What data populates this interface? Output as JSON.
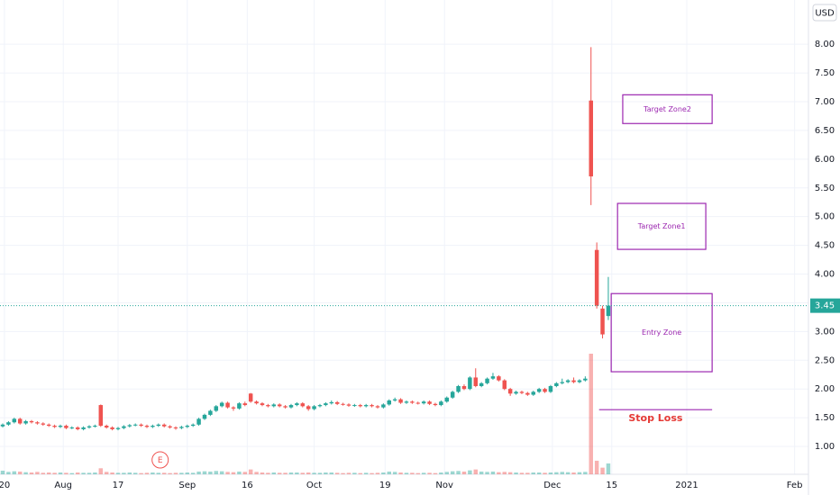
{
  "chart_data": {
    "type": "candlestick",
    "currency": "USD",
    "up_color": "#26a69a",
    "down_color": "#ef5350",
    "annotation_color": "#9c27b0",
    "stop_text_color": "#e53935",
    "grid": true,
    "ylim": [
      0.515,
      8.77
    ],
    "xlim": [
      -0.47,
      139.7
    ],
    "yticks": [
      {
        "value": 1,
        "label": "1.00"
      },
      {
        "value": 1.5,
        "label": "1.50"
      },
      {
        "value": 2,
        "label": "2.00"
      },
      {
        "value": 2.5,
        "label": "2.50"
      },
      {
        "value": 3,
        "label": "3.00"
      },
      {
        "value": 3.5,
        "label": "3.50"
      },
      {
        "value": 4,
        "label": "4.00"
      },
      {
        "value": 4.5,
        "label": "4.50"
      },
      {
        "value": 5,
        "label": "5.00"
      },
      {
        "value": 5.5,
        "label": "5.50"
      },
      {
        "value": 6,
        "label": "6.00"
      },
      {
        "value": 6.5,
        "label": "6.50"
      },
      {
        "value": 7,
        "label": "7.00"
      },
      {
        "value": 7.5,
        "label": "7.50"
      },
      {
        "value": 8,
        "label": "8.00"
      }
    ],
    "xticks": [
      {
        "value": 0.3,
        "label": "20"
      },
      {
        "value": 10.5,
        "label": "Aug"
      },
      {
        "value": 20,
        "label": "17"
      },
      {
        "value": 32,
        "label": "Sep"
      },
      {
        "value": 42.4,
        "label": "16"
      },
      {
        "value": 54,
        "label": "Oct"
      },
      {
        "value": 66.3,
        "label": "19"
      },
      {
        "value": 76.6,
        "label": "Nov"
      },
      {
        "value": 95.3,
        "label": "Dec"
      },
      {
        "value": 105.6,
        "label": "15"
      },
      {
        "value": 118.6,
        "label": "2021"
      },
      {
        "value": 137.3,
        "label": "Feb"
      }
    ],
    "candles": [
      [
        1.35,
        1.4,
        1.33,
        1.38
      ],
      [
        1.38,
        1.44,
        1.36,
        1.42
      ],
      [
        1.42,
        1.5,
        1.4,
        1.48
      ],
      [
        1.48,
        1.5,
        1.38,
        1.4
      ],
      [
        1.4,
        1.46,
        1.38,
        1.44
      ],
      [
        1.44,
        1.46,
        1.4,
        1.42
      ],
      [
        1.42,
        1.44,
        1.38,
        1.4
      ],
      [
        1.4,
        1.42,
        1.36,
        1.38
      ],
      [
        1.38,
        1.4,
        1.34,
        1.36
      ],
      [
        1.36,
        1.38,
        1.32,
        1.34
      ],
      [
        1.34,
        1.38,
        1.32,
        1.36
      ],
      [
        1.36,
        1.38,
        1.3,
        1.32
      ],
      [
        1.32,
        1.35,
        1.3,
        1.33
      ],
      [
        1.33,
        1.35,
        1.28,
        1.3
      ],
      [
        1.3,
        1.35,
        1.28,
        1.33
      ],
      [
        1.33,
        1.37,
        1.31,
        1.35
      ],
      [
        1.35,
        1.38,
        1.33,
        1.36
      ],
      [
        1.72,
        1.73,
        1.34,
        1.36
      ],
      [
        1.36,
        1.38,
        1.31,
        1.33
      ],
      [
        1.33,
        1.35,
        1.28,
        1.3
      ],
      [
        1.3,
        1.34,
        1.28,
        1.32
      ],
      [
        1.32,
        1.37,
        1.3,
        1.35
      ],
      [
        1.35,
        1.39,
        1.33,
        1.37
      ],
      [
        1.37,
        1.4,
        1.35,
        1.38
      ],
      [
        1.38,
        1.4,
        1.34,
        1.36
      ],
      [
        1.36,
        1.38,
        1.32,
        1.34
      ],
      [
        1.34,
        1.38,
        1.32,
        1.36
      ],
      [
        1.36,
        1.4,
        1.34,
        1.38
      ],
      [
        1.38,
        1.4,
        1.33,
        1.35
      ],
      [
        1.35,
        1.37,
        1.31,
        1.33
      ],
      [
        1.33,
        1.35,
        1.29,
        1.32
      ],
      [
        1.32,
        1.36,
        1.3,
        1.34
      ],
      [
        1.34,
        1.38,
        1.32,
        1.36
      ],
      [
        1.36,
        1.4,
        1.34,
        1.38
      ],
      [
        1.38,
        1.5,
        1.36,
        1.48
      ],
      [
        1.48,
        1.57,
        1.46,
        1.55
      ],
      [
        1.55,
        1.64,
        1.53,
        1.62
      ],
      [
        1.62,
        1.72,
        1.6,
        1.7
      ],
      [
        1.7,
        1.78,
        1.68,
        1.76
      ],
      [
        1.76,
        1.78,
        1.66,
        1.68
      ],
      [
        1.68,
        1.7,
        1.62,
        1.66
      ],
      [
        1.66,
        1.77,
        1.64,
        1.75
      ],
      [
        1.75,
        1.78,
        1.7,
        1.72
      ],
      [
        1.92,
        1.93,
        1.76,
        1.78
      ],
      [
        1.78,
        1.8,
        1.73,
        1.75
      ],
      [
        1.75,
        1.77,
        1.7,
        1.72
      ],
      [
        1.72,
        1.74,
        1.68,
        1.7
      ],
      [
        1.7,
        1.75,
        1.68,
        1.73
      ],
      [
        1.73,
        1.75,
        1.68,
        1.7
      ],
      [
        1.7,
        1.72,
        1.66,
        1.68
      ],
      [
        1.68,
        1.74,
        1.66,
        1.72
      ],
      [
        1.72,
        1.77,
        1.7,
        1.75
      ],
      [
        1.75,
        1.77,
        1.68,
        1.7
      ],
      [
        1.7,
        1.72,
        1.62,
        1.65
      ],
      [
        1.65,
        1.72,
        1.63,
        1.7
      ],
      [
        1.7,
        1.74,
        1.68,
        1.72
      ],
      [
        1.72,
        1.77,
        1.7,
        1.75
      ],
      [
        1.75,
        1.8,
        1.73,
        1.77
      ],
      [
        1.77,
        1.79,
        1.72,
        1.74
      ],
      [
        1.74,
        1.76,
        1.71,
        1.73
      ],
      [
        1.73,
        1.75,
        1.69,
        1.71
      ],
      [
        1.71,
        1.74,
        1.69,
        1.72
      ],
      [
        1.72,
        1.74,
        1.68,
        1.7
      ],
      [
        1.7,
        1.74,
        1.68,
        1.72
      ],
      [
        1.72,
        1.74,
        1.68,
        1.7
      ],
      [
        1.7,
        1.72,
        1.66,
        1.68
      ],
      [
        1.68,
        1.75,
        1.66,
        1.73
      ],
      [
        1.73,
        1.82,
        1.71,
        1.8
      ],
      [
        1.8,
        1.85,
        1.78,
        1.82
      ],
      [
        1.82,
        1.84,
        1.74,
        1.76
      ],
      [
        1.76,
        1.8,
        1.74,
        1.78
      ],
      [
        1.78,
        1.8,
        1.74,
        1.76
      ],
      [
        1.76,
        1.78,
        1.73,
        1.75
      ],
      [
        1.75,
        1.8,
        1.73,
        1.78
      ],
      [
        1.78,
        1.8,
        1.72,
        1.74
      ],
      [
        1.74,
        1.76,
        1.7,
        1.72
      ],
      [
        1.72,
        1.8,
        1.7,
        1.78
      ],
      [
        1.78,
        1.87,
        1.76,
        1.85
      ],
      [
        1.85,
        1.97,
        1.83,
        1.95
      ],
      [
        1.95,
        2.07,
        1.93,
        2.05
      ],
      [
        2.05,
        2.08,
        1.98,
        2.0
      ],
      [
        2.0,
        2.22,
        1.98,
        2.2
      ],
      [
        2.2,
        2.36,
        2.03,
        2.05
      ],
      [
        2.05,
        2.12,
        2.03,
        2.1
      ],
      [
        2.1,
        2.2,
        2.08,
        2.18
      ],
      [
        2.18,
        2.28,
        2.16,
        2.22
      ],
      [
        2.22,
        2.24,
        2.13,
        2.15
      ],
      [
        2.15,
        2.17,
        1.98,
        2.0
      ],
      [
        2.0,
        2.02,
        1.88,
        1.92
      ],
      [
        1.92,
        1.97,
        1.9,
        1.95
      ],
      [
        1.95,
        1.97,
        1.91,
        1.93
      ],
      [
        1.93,
        1.95,
        1.88,
        1.9
      ],
      [
        1.9,
        1.97,
        1.88,
        1.95
      ],
      [
        1.95,
        2.02,
        1.93,
        2.0
      ],
      [
        2.0,
        2.02,
        1.93,
        1.95
      ],
      [
        1.95,
        2.07,
        1.93,
        2.05
      ],
      [
        2.05,
        2.12,
        2.03,
        2.1
      ],
      [
        2.1,
        2.18,
        2.08,
        2.12
      ],
      [
        2.12,
        2.17,
        2.1,
        2.15
      ],
      [
        2.15,
        2.2,
        2.1,
        2.12
      ],
      [
        2.12,
        2.17,
        2.1,
        2.15
      ],
      [
        2.15,
        2.22,
        2.13,
        2.18
      ],
      [
        7.02,
        7.95,
        5.2,
        5.7
      ],
      [
        4.42,
        4.55,
        3.4,
        3.45
      ],
      [
        3.4,
        3.45,
        2.88,
        2.95
      ],
      [
        3.27,
        3.95,
        3.2,
        3.45
      ]
    ],
    "volume": [
      1.2,
      0.8,
      1.0,
      0.9,
      0.7,
      0.6,
      0.8,
      0.5,
      0.6,
      0.5,
      0.6,
      0.5,
      0.4,
      0.6,
      0.5,
      0.5,
      0.6,
      2.0,
      0.8,
      0.6,
      0.5,
      0.5,
      0.6,
      0.5,
      0.4,
      0.5,
      0.6,
      0.5,
      0.5,
      0.4,
      0.5,
      0.5,
      0.6,
      0.5,
      0.9,
      1.0,
      0.9,
      1.1,
      1.0,
      0.8,
      0.7,
      0.9,
      0.8,
      1.6,
      0.8,
      0.6,
      0.5,
      0.6,
      0.5,
      0.5,
      0.6,
      0.6,
      0.5,
      0.6,
      0.5,
      0.5,
      0.6,
      0.6,
      0.5,
      0.4,
      0.5,
      0.5,
      0.4,
      0.5,
      0.4,
      0.5,
      0.6,
      0.9,
      0.8,
      0.6,
      0.5,
      0.5,
      0.4,
      0.5,
      0.5,
      0.4,
      0.6,
      0.8,
      1.0,
      1.1,
      0.9,
      1.3,
      1.6,
      0.9,
      0.8,
      0.9,
      0.7,
      0.8,
      0.7,
      0.6,
      0.5,
      0.5,
      0.6,
      0.6,
      0.5,
      0.6,
      0.7,
      0.8,
      0.7,
      0.6,
      0.7,
      0.8,
      40,
      4.5,
      2.2,
      3.6
    ],
    "zones": [
      {
        "label": "Target Zone2",
        "x": [
          107.5,
          123
        ],
        "y": [
          6.62,
          7.12
        ]
      },
      {
        "label": "Target Zone1",
        "x": [
          106.6,
          121.9
        ],
        "y": [
          4.43,
          5.23
        ]
      },
      {
        "label": "Entry Zone",
        "x": [
          105.5,
          123
        ],
        "y": [
          2.3,
          3.66
        ]
      }
    ],
    "stop_loss": {
      "label": "Stop Loss",
      "x": [
        103.4,
        123
      ],
      "y": 1.64
    },
    "earnings": {
      "label": "E",
      "x": 27.3
    }
  }
}
